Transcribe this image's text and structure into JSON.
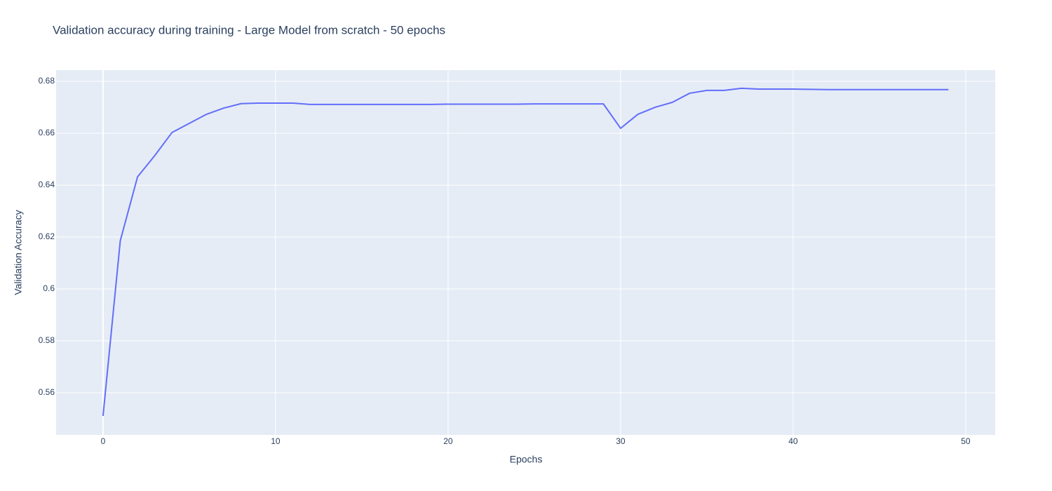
{
  "chart_data": {
    "type": "line",
    "title": "Validation accuracy during training - Large Model from scratch - 50 epochs",
    "xlabel": "Epochs",
    "ylabel": "Validation Accuracy",
    "x": [
      0,
      1,
      2,
      3,
      4,
      5,
      6,
      7,
      8,
      9,
      10,
      11,
      12,
      13,
      14,
      15,
      16,
      17,
      18,
      19,
      20,
      21,
      22,
      23,
      24,
      25,
      26,
      27,
      28,
      29,
      30,
      31,
      32,
      33,
      34,
      35,
      36,
      37,
      38,
      39,
      40,
      41,
      42,
      43,
      44,
      45,
      46,
      47,
      48,
      49
    ],
    "series": [
      {
        "name": "Validation Accuracy",
        "color": "#636efa",
        "values": [
          0.5511,
          0.6186,
          0.6432,
          0.6514,
          0.6603,
          0.6638,
          0.6673,
          0.6697,
          0.6714,
          0.6716,
          0.6716,
          0.6716,
          0.6711,
          0.6711,
          0.6711,
          0.6711,
          0.6711,
          0.6711,
          0.6711,
          0.6711,
          0.6712,
          0.6712,
          0.6712,
          0.6712,
          0.6712,
          0.6713,
          0.6713,
          0.6713,
          0.6713,
          0.6713,
          0.6619,
          0.6673,
          0.67,
          0.6719,
          0.6754,
          0.6765,
          0.6765,
          0.6773,
          0.677,
          0.677,
          0.677,
          0.6769,
          0.6768,
          0.6768,
          0.6768,
          0.6768,
          0.6768,
          0.6768,
          0.6768,
          0.6768
        ]
      }
    ],
    "xlim": [
      -2.72,
      51.71
    ],
    "xticks": [
      0,
      10,
      20,
      30,
      40,
      50
    ],
    "ylim": [
      0.5438,
      0.6843
    ],
    "yticks": [
      0.56,
      0.58,
      0.6,
      0.62,
      0.64,
      0.66,
      0.68
    ],
    "grid": true,
    "background": "#e5ecf6"
  }
}
